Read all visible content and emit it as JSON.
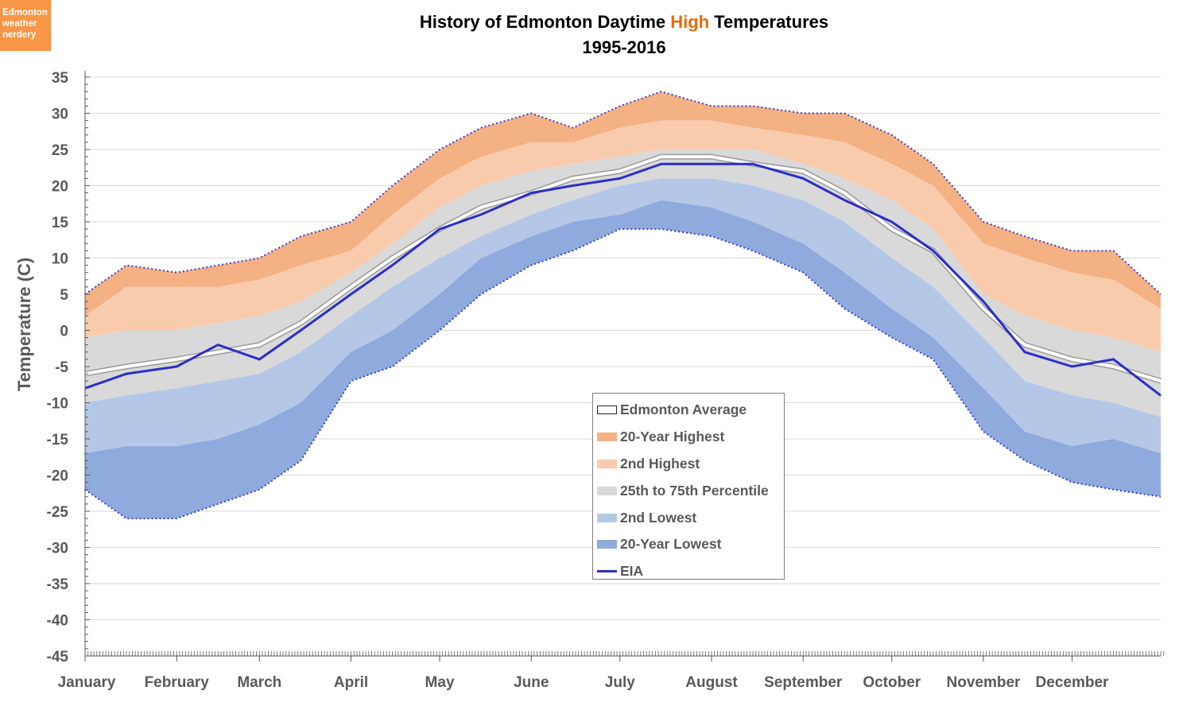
{
  "logo": {
    "lines": [
      "Edmonton",
      "weather",
      "nerdery"
    ],
    "color": "#f79646"
  },
  "chart_data": {
    "type": "area",
    "title_parts": [
      "History of Edmonton Daytime ",
      "High",
      " Temperatures"
    ],
    "subtitle": "1995-2016",
    "ylabel": "Temperature (C)",
    "xlabel": "",
    "ylim": [
      -45,
      35
    ],
    "yticks": [
      35,
      30,
      25,
      20,
      15,
      10,
      5,
      0,
      -5,
      -10,
      -15,
      -20,
      -25,
      -30,
      -35,
      -40,
      -45
    ],
    "grid": true,
    "legend_position": "center-right",
    "months": [
      "January",
      "February",
      "March",
      "April",
      "May",
      "June",
      "July",
      "August",
      "September",
      "October",
      "November",
      "December"
    ],
    "day_of_year": [
      1,
      15,
      32,
      46,
      60,
      74,
      91,
      105,
      121,
      135,
      152,
      166,
      182,
      196,
      213,
      227,
      244,
      258,
      274,
      288,
      305,
      319,
      335,
      349,
      365
    ],
    "series": [
      {
        "name": "20-Year Highest",
        "color": "#f4b183",
        "values": [
          5,
          9,
          8,
          9,
          10,
          13,
          15,
          20,
          25,
          28,
          30,
          28,
          31,
          33,
          31,
          31,
          30,
          30,
          27,
          23,
          15,
          13,
          11,
          11,
          5
        ]
      },
      {
        "name": "2nd Highest",
        "color": "#f8cbad",
        "values": [
          2,
          6,
          6,
          6,
          7,
          9,
          11,
          16,
          21,
          24,
          26,
          26,
          28,
          29,
          29,
          28,
          27,
          26,
          23,
          20,
          12,
          10,
          8,
          7,
          3
        ]
      },
      {
        "name": "25th to 75th Percentile",
        "color": "#d9d9d9",
        "upper": [
          -1,
          0,
          0,
          1,
          2,
          4,
          8,
          12,
          17,
          20,
          22,
          23,
          24,
          25,
          25,
          25,
          23,
          21,
          18,
          14,
          5,
          2,
          0,
          -1,
          -3
        ],
        "lower": [
          -10,
          -9,
          -8,
          -7,
          -6,
          -3,
          2,
          6,
          10,
          13,
          16,
          18,
          20,
          21,
          21,
          20,
          18,
          15,
          10,
          6,
          -1,
          -7,
          -9,
          -10,
          -12
        ]
      },
      {
        "name": "2nd Lowest",
        "color": "#b4c7e7",
        "values": [
          -17,
          -16,
          -16,
          -15,
          -13,
          -10,
          -3,
          0,
          5,
          10,
          13,
          15,
          16,
          18,
          17,
          15,
          12,
          8,
          3,
          -1,
          -8,
          -14,
          -16,
          -15,
          -17
        ]
      },
      {
        "name": "20-Year Lowest",
        "color": "#8faadc",
        "values": [
          -22,
          -26,
          -26,
          -24,
          -22,
          -18,
          -7,
          -5,
          0,
          5,
          9,
          11,
          14,
          14,
          13,
          11,
          8,
          3,
          -1,
          -4,
          -14,
          -18,
          -21,
          -22,
          -23
        ]
      },
      {
        "name": "Edmonton Average",
        "color": "#ffffff",
        "values": [
          -6,
          -5,
          -4,
          -3,
          -2,
          1,
          6,
          10,
          14,
          17,
          19,
          21,
          22,
          24,
          24,
          23,
          22,
          19,
          14,
          11,
          3,
          -2,
          -4,
          -5,
          -7
        ]
      },
      {
        "name": "EIA",
        "color": "#2b2fc8",
        "values": [
          -8,
          -6,
          -5,
          -2,
          -4,
          0,
          5,
          9,
          14,
          16,
          19,
          20,
          21,
          23,
          23,
          23,
          21,
          18,
          15,
          11,
          4,
          -3,
          -5,
          -4,
          -9
        ]
      }
    ]
  }
}
